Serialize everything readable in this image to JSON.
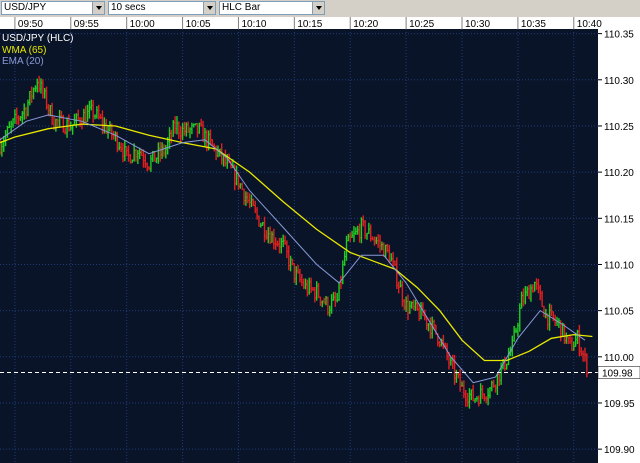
{
  "toolbar": {
    "symbol": "USD/JPY",
    "interval": "10 secs",
    "chart_style": "HLC Bar"
  },
  "colors": {
    "background": "#000000",
    "plot_background": "#0a1428",
    "grid": "#1e3c78",
    "up_bar": "#22cc22",
    "down_bar": "#e02020",
    "wma": "#e8e800",
    "ema": "#8a9ad8",
    "axis_text": "#000000",
    "axis_bg": "#ffffff"
  },
  "chart_data": {
    "type": "bar",
    "style": "HLC",
    "pair_label": "USD/JPY (HLC)",
    "legend": [
      {
        "name": "WMA (65)",
        "color": "#e8e800"
      },
      {
        "name": "EMA (20)",
        "color": "#8a9ad8"
      }
    ],
    "time_labels": [
      "09:50",
      "09:55",
      "10:00",
      "10:05",
      "10:10",
      "10:15",
      "10:20",
      "10:25",
      "10:30",
      "10:35",
      "10:40"
    ],
    "time_range": [
      "09:48:40",
      "10:42:10"
    ],
    "price_labels": [
      "110.35",
      "110.30",
      "110.25",
      "110.20",
      "110.15",
      "110.10",
      "110.05",
      "110.00",
      "109.95",
      "109.90"
    ],
    "ylim": [
      109.885,
      110.355
    ],
    "last_price": "109.98",
    "last_price_value": 109.983,
    "grid": true,
    "price_path": [
      [
        "09:48:40",
        110.23
      ],
      [
        "09:50:00",
        110.255
      ],
      [
        "09:51:00",
        110.27
      ],
      [
        "09:52:00",
        110.3
      ],
      [
        "09:52:40",
        110.28
      ],
      [
        "09:53:30",
        110.255
      ],
      [
        "09:55:00",
        110.25
      ],
      [
        "09:56:00",
        110.26
      ],
      [
        "09:57:00",
        110.265
      ],
      [
        "09:58:00",
        110.25
      ],
      [
        "09:59:30",
        110.23
      ],
      [
        "10:00:00",
        110.215
      ],
      [
        "10:01:00",
        110.225
      ],
      [
        "10:02:00",
        110.21
      ],
      [
        "10:03:30",
        110.225
      ],
      [
        "10:04:20",
        110.25
      ],
      [
        "10:05:00",
        110.245
      ],
      [
        "10:06:30",
        110.245
      ],
      [
        "10:07:30",
        110.23
      ],
      [
        "10:08:30",
        110.215
      ],
      [
        "10:10:00",
        110.19
      ],
      [
        "10:11:00",
        110.165
      ],
      [
        "10:12:00",
        110.145
      ],
      [
        "10:13:00",
        110.13
      ],
      [
        "10:14:00",
        110.12
      ],
      [
        "10:15:00",
        110.09
      ],
      [
        "10:16:00",
        110.075
      ],
      [
        "10:17:00",
        110.07
      ],
      [
        "10:18:00",
        110.055
      ],
      [
        "10:18:50",
        110.06
      ],
      [
        "10:19:40",
        110.12
      ],
      [
        "10:21:00",
        110.14
      ],
      [
        "10:22:00",
        110.13
      ],
      [
        "10:23:30",
        110.11
      ],
      [
        "10:25:00",
        110.055
      ],
      [
        "10:26:30",
        110.045
      ],
      [
        "10:28:00",
        110.02
      ],
      [
        "10:29:00",
        109.99
      ],
      [
        "10:30:00",
        109.965
      ],
      [
        "10:31:00",
        109.955
      ],
      [
        "10:32:30",
        109.965
      ],
      [
        "10:33:30",
        109.985
      ],
      [
        "10:34:30",
        110.01
      ],
      [
        "10:35:20",
        110.06
      ],
      [
        "10:36:30",
        110.08
      ],
      [
        "10:37:30",
        110.045
      ],
      [
        "10:38:40",
        110.035
      ],
      [
        "10:39:40",
        110.01
      ],
      [
        "10:40:20",
        110.02
      ],
      [
        "10:41:10",
        109.99
      ]
    ],
    "wma_65": [
      [
        "09:48:40",
        110.232
      ],
      [
        "09:50:00",
        110.238
      ],
      [
        "09:53:00",
        110.247
      ],
      [
        "09:56:00",
        110.252
      ],
      [
        "09:59:00",
        110.25
      ],
      [
        "10:02:00",
        110.24
      ],
      [
        "10:05:00",
        110.232
      ],
      [
        "10:08:00",
        110.225
      ],
      [
        "10:11:00",
        110.2
      ],
      [
        "10:14:00",
        110.168
      ],
      [
        "10:17:00",
        110.138
      ],
      [
        "10:20:00",
        110.113
      ],
      [
        "10:22:00",
        110.104
      ],
      [
        "10:24:00",
        110.095
      ],
      [
        "10:26:00",
        110.075
      ],
      [
        "10:28:00",
        110.05
      ],
      [
        "10:30:00",
        110.018
      ],
      [
        "10:32:00",
        109.996
      ],
      [
        "10:34:00",
        109.996
      ],
      [
        "10:36:00",
        110.006
      ],
      [
        "10:38:00",
        110.02
      ],
      [
        "10:40:00",
        110.024
      ],
      [
        "10:41:40",
        110.022
      ]
    ],
    "ema_20": [
      [
        "09:48:40",
        110.235
      ],
      [
        "09:51:00",
        110.255
      ],
      [
        "09:53:00",
        110.262
      ],
      [
        "09:56:00",
        110.255
      ],
      [
        "09:59:00",
        110.24
      ],
      [
        "10:02:00",
        110.22
      ],
      [
        "10:05:00",
        110.232
      ],
      [
        "10:07:00",
        110.235
      ],
      [
        "10:09:00",
        110.215
      ],
      [
        "10:11:00",
        110.18
      ],
      [
        "10:14:00",
        110.14
      ],
      [
        "10:17:00",
        110.1
      ],
      [
        "10:19:00",
        110.08
      ],
      [
        "10:21:00",
        110.11
      ],
      [
        "10:23:00",
        110.11
      ],
      [
        "10:25:00",
        110.08
      ],
      [
        "10:27:00",
        110.04
      ],
      [
        "10:29:00",
        110.0
      ],
      [
        "10:31:00",
        109.972
      ],
      [
        "10:33:00",
        109.978
      ],
      [
        "10:35:00",
        110.02
      ],
      [
        "10:37:00",
        110.05
      ],
      [
        "10:39:00",
        110.035
      ],
      [
        "10:41:00",
        110.018
      ]
    ]
  }
}
